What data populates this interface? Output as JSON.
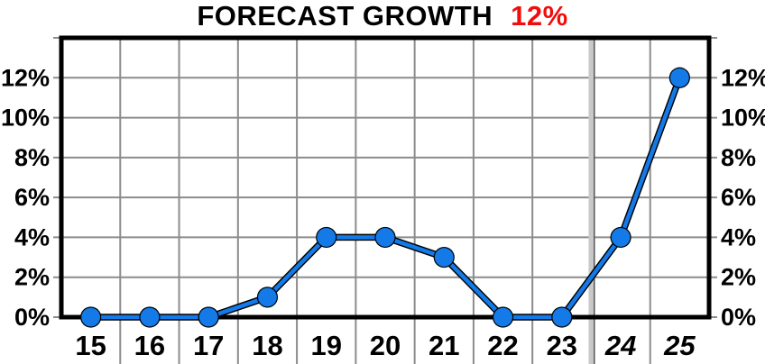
{
  "title": {
    "text": "FORECAST GROWTH",
    "highlight": "12%",
    "highlight_color": "#f20d0d"
  },
  "chart_data": {
    "type": "line",
    "title": "FORECAST GROWTH 12%",
    "categories": [
      "15",
      "16",
      "17",
      "18",
      "19",
      "20",
      "21",
      "22",
      "23",
      "24",
      "25"
    ],
    "values": [
      0,
      0,
      0,
      1,
      4,
      4,
      3,
      0,
      0,
      4,
      12
    ],
    "series_name": "forecast-growth-percent",
    "xlabel": "",
    "ylabel": "",
    "ylim": [
      0,
      14
    ],
    "y_ticks": [
      {
        "value": 0,
        "label": "0%"
      },
      {
        "value": 2,
        "label": "2%"
      },
      {
        "value": 4,
        "label": "4%"
      },
      {
        "value": 6,
        "label": "6%"
      },
      {
        "value": 8,
        "label": "8%"
      },
      {
        "value": 10,
        "label": "10%"
      },
      {
        "value": 12,
        "label": "12%"
      }
    ],
    "y_axis_sides": "both",
    "grid": true,
    "forecast_start_index": 9,
    "separator_between": [
      "23",
      "24"
    ],
    "line_color": "#147ae8",
    "line_outline_color": "#000000",
    "grid_color": "#8c8c8c",
    "separator_color": "#c9c9c9",
    "marker": "circle"
  }
}
